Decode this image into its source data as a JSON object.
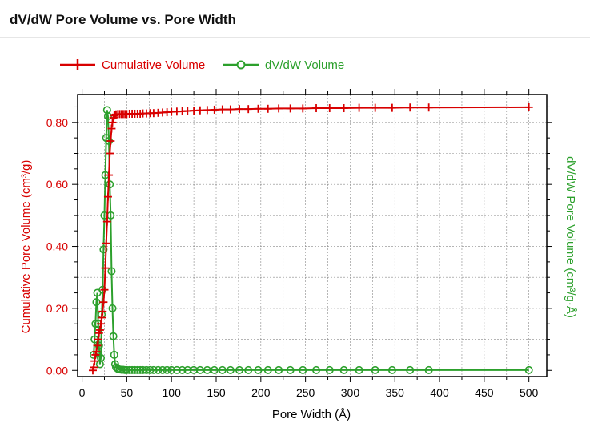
{
  "page": {
    "title": "dV/dW Pore Volume vs. Pore Width"
  },
  "colors": {
    "red": "#d80000",
    "green": "#2ca02c",
    "axis": "#000000",
    "grid": "#888888"
  },
  "chart_data": {
    "type": "line",
    "title": "dV/dW Pore Volume vs. Pore Width",
    "xlabel": "Pore Width (Å)",
    "ylabel_left": "Cumulative Pore Volume (cm³/g)",
    "ylabel_right": "dV/dW Pore Volume (cm³/g·Å)",
    "xlim": [
      -5,
      520
    ],
    "ylim_left": [
      -0.02,
      0.89
    ],
    "x_ticks": [
      0,
      50,
      100,
      150,
      200,
      250,
      300,
      350,
      400,
      450,
      500
    ],
    "x_tick_labels": [
      "0",
      "50",
      "100",
      "150",
      "200",
      "250",
      "300",
      "350",
      "400",
      "450",
      "500"
    ],
    "y_ticks": [
      0.0,
      0.2,
      0.4,
      0.6,
      0.8
    ],
    "y_tick_labels": [
      "0.00",
      "0.20",
      "0.40",
      "0.60",
      "0.80"
    ],
    "grid": true,
    "legend_position": "top-left",
    "series": [
      {
        "name": "Cumulative Volume",
        "marker": "plus",
        "axis": "left",
        "x": [
          12,
          13,
          14,
          15,
          16,
          17,
          18,
          19,
          20,
          21,
          22,
          23,
          24,
          25,
          26,
          27,
          28,
          29,
          30,
          31,
          32,
          33,
          34,
          35,
          36,
          37,
          38,
          40,
          42,
          44,
          46,
          48,
          50,
          53,
          56,
          59,
          62,
          65,
          68,
          72,
          76,
          80,
          85,
          90,
          95,
          100,
          106,
          112,
          118,
          125,
          132,
          140,
          148,
          157,
          166,
          176,
          186,
          197,
          208,
          220,
          233,
          247,
          262,
          277,
          293,
          310,
          328,
          347,
          367,
          388,
          500
        ],
        "values": [
          0.0,
          0.01,
          0.03,
          0.05,
          0.06,
          0.08,
          0.1,
          0.12,
          0.13,
          0.15,
          0.17,
          0.19,
          0.22,
          0.26,
          0.33,
          0.41,
          0.48,
          0.56,
          0.63,
          0.7,
          0.74,
          0.78,
          0.8,
          0.815,
          0.822,
          0.825,
          0.826,
          0.827,
          0.827,
          0.827,
          0.827,
          0.827,
          0.827,
          0.828,
          0.828,
          0.828,
          0.828,
          0.828,
          0.829,
          0.829,
          0.83,
          0.83,
          0.831,
          0.832,
          0.833,
          0.834,
          0.835,
          0.836,
          0.837,
          0.838,
          0.839,
          0.84,
          0.841,
          0.842,
          0.842,
          0.843,
          0.843,
          0.844,
          0.844,
          0.845,
          0.845,
          0.845,
          0.846,
          0.846,
          0.846,
          0.847,
          0.847,
          0.847,
          0.848,
          0.848,
          0.849
        ]
      },
      {
        "name": "dV/dW Volume",
        "marker": "circle",
        "axis": "right",
        "x": [
          13,
          14,
          15,
          16,
          17,
          18,
          19,
          20,
          21,
          22,
          23,
          24,
          25,
          26,
          27,
          28,
          29,
          30,
          31,
          32,
          33,
          34,
          35,
          36,
          37,
          38,
          40,
          42,
          44,
          46,
          48,
          50,
          53,
          56,
          59,
          62,
          65,
          68,
          72,
          76,
          80,
          85,
          90,
          95,
          100,
          106,
          112,
          118,
          125,
          132,
          140,
          148,
          157,
          166,
          176,
          186,
          197,
          208,
          220,
          233,
          247,
          262,
          277,
          293,
          310,
          328,
          347,
          367,
          388,
          500
        ],
        "values": [
          0.05,
          0.1,
          0.15,
          0.22,
          0.25,
          0.15,
          0.08,
          0.02,
          0.04,
          0.18,
          0.26,
          0.39,
          0.5,
          0.63,
          0.75,
          0.84,
          0.82,
          0.74,
          0.6,
          0.5,
          0.32,
          0.2,
          0.11,
          0.05,
          0.02,
          0.01,
          0.005,
          0.003,
          0.002,
          0.002,
          0.001,
          0.001,
          0.001,
          0.001,
          0.001,
          0.001,
          0.001,
          0.001,
          0.001,
          0.001,
          0.001,
          0.001,
          0.001,
          0.001,
          0.001,
          0.001,
          0.001,
          0.001,
          0.001,
          0.001,
          0.001,
          0.001,
          0.001,
          0.001,
          0.001,
          0.001,
          0.001,
          0.001,
          0.001,
          0.001,
          0.001,
          0.001,
          0.001,
          0.001,
          0.001,
          0.001,
          0.001,
          0.001,
          0.001,
          0.001
        ]
      }
    ]
  }
}
